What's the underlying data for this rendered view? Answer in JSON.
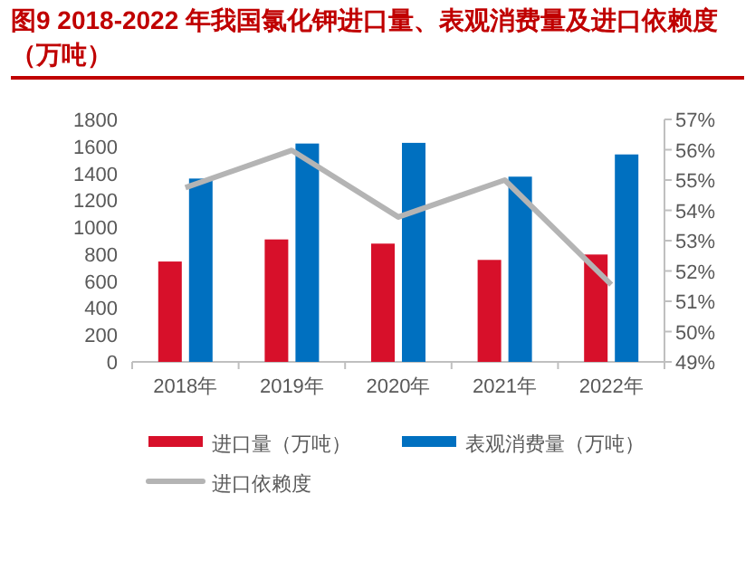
{
  "chart_data": {
    "type": "bar",
    "title": "图9  2018-2022 年我国氯化钾进口量、表观消费量及进口依赖度（万吨）",
    "categories": [
      "2018年",
      "2019年",
      "2020年",
      "2021年",
      "2022年"
    ],
    "series": [
      {
        "name": "进口量（万吨）",
        "color": "#d7102a",
        "values": [
          745,
          909,
          878,
          757,
          797
        ]
      },
      {
        "name": "表观消费量（万吨）",
        "color": "#0070c0",
        "values": [
          1361,
          1621,
          1626,
          1375,
          1540
        ]
      },
      {
        "name": "进口依赖度",
        "type": "line",
        "axis": "y2",
        "color": "#b4b4b4",
        "values": [
          54.75,
          55.98,
          53.78,
          55.0,
          51.55
        ]
      }
    ],
    "ylim": [
      0,
      1800
    ],
    "yticks": [
      0,
      200,
      400,
      600,
      800,
      1000,
      1200,
      1400,
      1600,
      1800
    ],
    "y2lim": [
      49,
      57
    ],
    "y2ticks": [
      {
        "value": 49,
        "label": "49%"
      },
      {
        "value": 50,
        "label": "50%"
      },
      {
        "value": 51,
        "label": "51%"
      },
      {
        "value": 52,
        "label": "52%"
      },
      {
        "value": 53,
        "label": "53%"
      },
      {
        "value": 54,
        "label": "54%"
      },
      {
        "value": 55,
        "label": "55%"
      },
      {
        "value": 56,
        "label": "56%"
      },
      {
        "value": 57,
        "label": "57%"
      }
    ],
    "legend": "bottom",
    "grid": false
  }
}
